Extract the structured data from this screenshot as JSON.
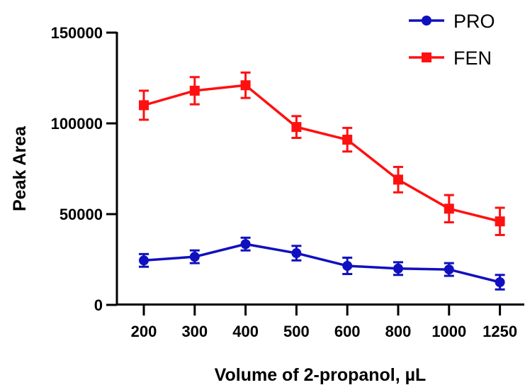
{
  "chart_data": {
    "type": "line",
    "title": "",
    "xlabel": "Volume of 2-propanol, µL",
    "ylabel": "Peak  Area",
    "categories": [
      "200",
      "300",
      "400",
      "500",
      "600",
      "800",
      "1000",
      "1250"
    ],
    "ylim": [
      0,
      150000
    ],
    "yticks": [
      "0",
      "50000",
      "100000",
      "150000"
    ],
    "grid": false,
    "legend_position": "top-right",
    "series": [
      {
        "name": "PRO",
        "color": "#1010c0",
        "marker": "circle",
        "values": [
          24500,
          26500,
          33500,
          28500,
          21500,
          20000,
          19500,
          12500
        ],
        "errors": [
          3500,
          3500,
          3500,
          4000,
          4500,
          3500,
          3500,
          4000
        ]
      },
      {
        "name": "FEN",
        "color": "#ff1010",
        "marker": "square",
        "values": [
          110000,
          118000,
          121000,
          98000,
          91000,
          69000,
          53000,
          46000
        ],
        "errors": [
          8000,
          7500,
          7000,
          6000,
          6500,
          7000,
          7500,
          7500
        ]
      }
    ]
  }
}
